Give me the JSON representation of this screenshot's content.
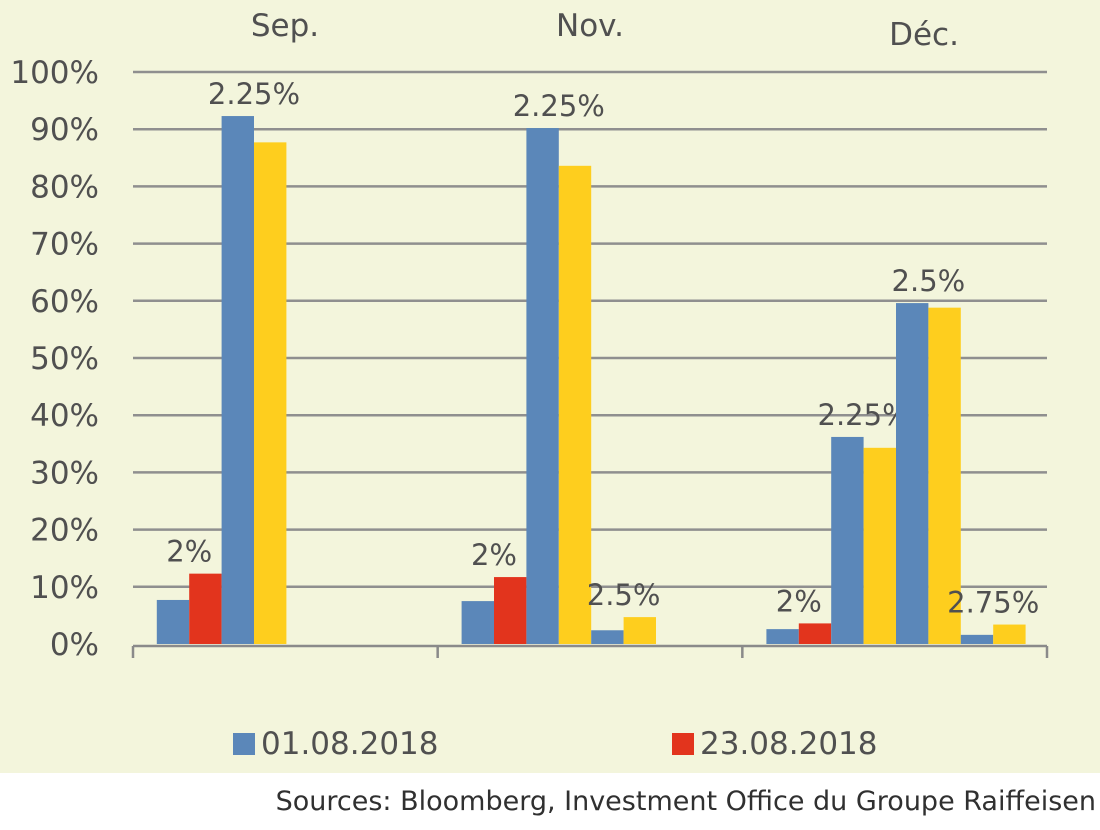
{
  "chart_data": {
    "type": "bar",
    "categories": [
      "Sep.",
      "Nov.",
      "Déc."
    ],
    "y_ticks": [
      "0%",
      "10%",
      "20%",
      "30%",
      "40%",
      "50%",
      "60%",
      "70%",
      "80%",
      "90%",
      "100%"
    ],
    "ylim": [
      0,
      100
    ],
    "grid": true,
    "rate_groups": [
      {
        "category": "Sep.",
        "rates": [
          {
            "rate": "2%",
            "values": {
              "01.08.2018": 7.7,
              "23.08.2018": 12.3
            }
          },
          {
            "rate": "2.25%",
            "values": {
              "01.08.2018": 92.3,
              "unlabeled": 87.7
            }
          }
        ]
      },
      {
        "category": "Nov.",
        "rates": [
          {
            "rate": "2%",
            "values": {
              "01.08.2018": 7.5,
              "23.08.2018": 11.7
            }
          },
          {
            "rate": "2.25%",
            "values": {
              "01.08.2018": 90.2,
              "unlabeled": 83.6
            }
          },
          {
            "rate": "2.5%",
            "values": {
              "01.08.2018": 2.4,
              "unlabeled": 4.7
            }
          }
        ]
      },
      {
        "category": "Déc.",
        "rates": [
          {
            "rate": "2%",
            "values": {
              "01.08.2018": 2.6,
              "23.08.2018": 3.6
            }
          },
          {
            "rate": "2.25%",
            "values": {
              "01.08.2018": 36.2,
              "unlabeled": 34.3
            }
          },
          {
            "rate": "2.5%",
            "values": {
              "01.08.2018": 59.6,
              "unlabeled": 58.8
            }
          },
          {
            "rate": "2.75%",
            "values": {
              "01.08.2018": 1.6,
              "unlabeled": 3.4
            }
          }
        ]
      }
    ],
    "legend": [
      {
        "label": "01.08.2018",
        "color": "#5b87b9"
      },
      {
        "label": "23.08.2018",
        "color": "#e2341d"
      }
    ],
    "colors": {
      "01.08.2018": "#5b87b9",
      "23.08.2018": "#e2341d",
      "unlabeled": "#fece1e"
    },
    "legend_position": "bottom"
  },
  "source": "Sources: Bloomberg, Investment Office du Groupe Raiffeisen"
}
